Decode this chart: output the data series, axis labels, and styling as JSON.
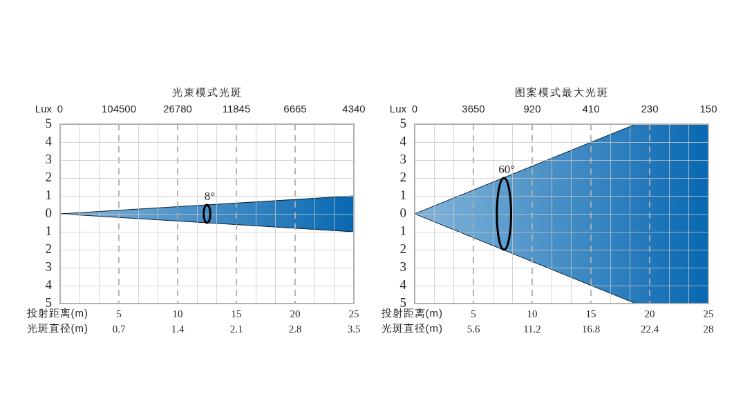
{
  "chart_data": [
    {
      "type": "area",
      "title": "光束模式光斑",
      "xlabel": "投射距离(m)",
      "x2label": "光斑直径(m)",
      "xlim": [
        0,
        25
      ],
      "xticks": [
        {
          "value": 1.67,
          "label": null
        },
        {
          "value": 3.33,
          "label": null
        },
        5,
        {
          "value": 6.67,
          "label": null
        },
        {
          "value": 8.33,
          "label": null
        },
        10,
        {
          "value": 11.67,
          "label": null
        },
        {
          "value": 13.33,
          "label": null
        },
        15,
        {
          "value": 16.67,
          "label": null
        },
        {
          "value": 18.33,
          "label": null
        },
        20,
        {
          "value": 21.67,
          "label": null
        },
        {
          "value": 23.33,
          "label": null
        },
        25
      ],
      "x2lim": [
        0,
        3.5
      ],
      "x2ticks": [
        0.7,
        1.4,
        2.1,
        2.8,
        3.5
      ],
      "ylim": [
        -5,
        5
      ],
      "yticks": [
        5,
        4,
        3,
        2,
        1,
        0,
        {
          "value": -1,
          "label": "1"
        },
        {
          "value": -2,
          "label": "2"
        },
        {
          "value": -3,
          "label": "3"
        },
        {
          "value": -4,
          "label": "4"
        },
        {
          "value": -5,
          "label": "5"
        }
      ],
      "series": [
        {
          "color": "#0868b2",
          "x": [
            0,
            25,
            25,
            0
          ],
          "values": [
            0,
            1,
            -1,
            0
          ]
        }
      ],
      "annotations": [
        "Lux",
        "0",
        "104500",
        "26780",
        "11845",
        "6665",
        "4340",
        {
          "text": "8°",
          "x": 12.5,
          "y": 0.5
        }
      ],
      "grid": true
    },
    {
      "type": "area",
      "title": "图案模式最大光斑",
      "xlabel": "投射距离(m)",
      "x2label": "光斑直径(m)",
      "xlim": [
        0,
        25
      ],
      "xticks": [
        {
          "value": 1.67,
          "label": null
        },
        {
          "value": 3.33,
          "label": null
        },
        5,
        {
          "value": 6.67,
          "label": null
        },
        {
          "value": 8.33,
          "label": null
        },
        10,
        {
          "value": 11.67,
          "label": null
        },
        {
          "value": 13.33,
          "label": null
        },
        15,
        {
          "value": 16.67,
          "label": null
        },
        {
          "value": 18.33,
          "label": null
        },
        20,
        {
          "value": 21.67,
          "label": null
        },
        {
          "value": 23.33,
          "label": null
        },
        25
      ],
      "x2lim": [
        0,
        28
      ],
      "x2ticks": [
        5.6,
        11.2,
        16.8,
        22.4,
        28
      ],
      "ylim": [
        -5,
        5
      ],
      "yticks": [
        5,
        4,
        3,
        2,
        1,
        0,
        {
          "value": -1,
          "label": "1"
        },
        {
          "value": -2,
          "label": "2"
        },
        {
          "value": -3,
          "label": "3"
        },
        {
          "value": -4,
          "label": "4"
        },
        {
          "value": -5,
          "label": "5"
        }
      ],
      "series": [
        {
          "color": "#0868b2",
          "x": [
            0,
            18.8,
            25,
            25,
            18.8,
            0
          ],
          "values": [
            0,
            5,
            5,
            -5,
            -5,
            0
          ]
        }
      ],
      "annotations": [
        "Lux",
        "0",
        "3650",
        "920",
        "410",
        "230",
        "150",
        {
          "text": "60°",
          "x": 7.6,
          "y": 2
        }
      ],
      "grid": true
    }
  ]
}
